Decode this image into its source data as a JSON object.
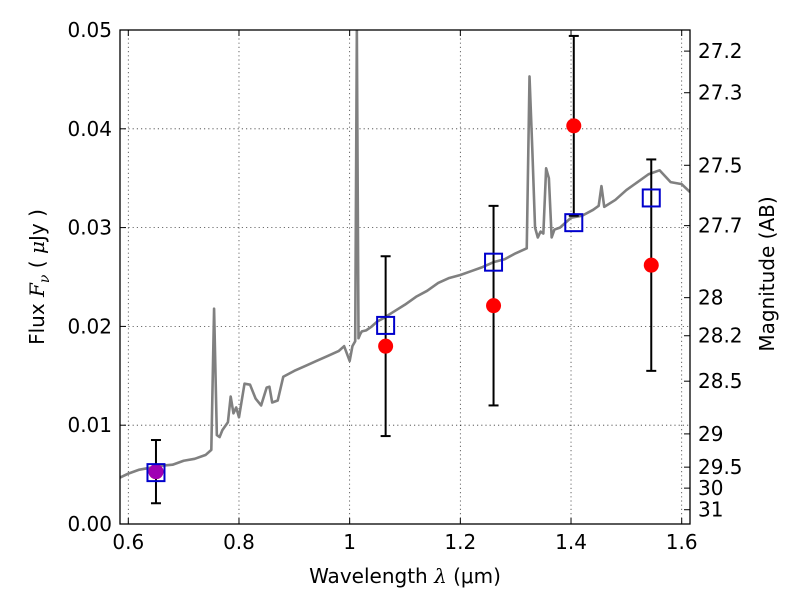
{
  "chart_data": {
    "type": "scatter",
    "xlabel_main": "Wavelength",
    "xlabel_symbol": "λ",
    "xlabel_unit": "(μm)",
    "ylabel_main": "Flux",
    "ylabel_symbol": "F",
    "ylabel_subscript": "ν",
    "ylabel_unit_open": "(",
    "ylabel_unit_mu": "μ",
    "ylabel_unit_rest": "Jy )",
    "y2label": "Magnitude (AB)",
    "xlim": [
      0.585,
      1.615
    ],
    "ylim": [
      0.0,
      0.05
    ],
    "grid": true,
    "x_ticks": [
      0.6,
      0.8,
      1.0,
      1.2,
      1.4,
      1.6
    ],
    "x_tick_labels": [
      "0.6",
      "0.8",
      "1",
      "1.2",
      "1.4",
      "1.6"
    ],
    "y_ticks": [
      0.0,
      0.01,
      0.02,
      0.03,
      0.04,
      0.05
    ],
    "y_tick_labels": [
      "0.00",
      "0.01",
      "0.02",
      "0.03",
      "0.04",
      "0.05"
    ],
    "mag_ticks": [
      27.2,
      27.3,
      27.5,
      27.7,
      28,
      28.2,
      28.5,
      29,
      29.5,
      30,
      31
    ],
    "mag_tick_labels": [
      "27.2",
      "27.3",
      "27.5",
      "27.7",
      "28",
      "28.2",
      "28.5",
      "29",
      "29.5",
      "30",
      "31"
    ],
    "series": [
      {
        "kind": "model-spectrum",
        "color": "#808080",
        "x": [
          0.585,
          0.6,
          0.62,
          0.64,
          0.66,
          0.68,
          0.7,
          0.72,
          0.74,
          0.75,
          0.755,
          0.76,
          0.765,
          0.77,
          0.78,
          0.785,
          0.79,
          0.795,
          0.8,
          0.81,
          0.82,
          0.83,
          0.84,
          0.85,
          0.855,
          0.86,
          0.87,
          0.88,
          0.9,
          0.92,
          0.94,
          0.96,
          0.98,
          0.99,
          1.0,
          1.005,
          1.01,
          1.013,
          1.016,
          1.019,
          1.022,
          1.03,
          1.04,
          1.05,
          1.06,
          1.08,
          1.1,
          1.12,
          1.14,
          1.16,
          1.18,
          1.2,
          1.22,
          1.24,
          1.26,
          1.28,
          1.3,
          1.32,
          1.325,
          1.33,
          1.335,
          1.34,
          1.345,
          1.35,
          1.355,
          1.36,
          1.365,
          1.37,
          1.38,
          1.4,
          1.42,
          1.44,
          1.45,
          1.455,
          1.46,
          1.48,
          1.5,
          1.52,
          1.54,
          1.56,
          1.58,
          1.6,
          1.615
        ],
        "y": [
          0.0047,
          0.0051,
          0.0055,
          0.0057,
          0.0059,
          0.006,
          0.0064,
          0.0066,
          0.007,
          0.0075,
          0.0218,
          0.009,
          0.0088,
          0.0095,
          0.0103,
          0.0129,
          0.0112,
          0.0118,
          0.0108,
          0.0142,
          0.0141,
          0.0127,
          0.012,
          0.0138,
          0.0139,
          0.0123,
          0.0125,
          0.0149,
          0.0155,
          0.016,
          0.0165,
          0.017,
          0.0175,
          0.018,
          0.0165,
          0.018,
          0.0185,
          0.05,
          0.0188,
          0.0192,
          0.0195,
          0.0196,
          0.02,
          0.0205,
          0.0208,
          0.0215,
          0.0222,
          0.023,
          0.0236,
          0.0244,
          0.0249,
          0.0252,
          0.0256,
          0.026,
          0.0265,
          0.0268,
          0.0274,
          0.0279,
          0.0453,
          0.038,
          0.03,
          0.029,
          0.0296,
          0.0294,
          0.036,
          0.035,
          0.029,
          0.0298,
          0.03,
          0.031,
          0.0312,
          0.0318,
          0.0322,
          0.0342,
          0.0321,
          0.0328,
          0.0338,
          0.0346,
          0.0354,
          0.0358,
          0.0346,
          0.0344,
          0.0336
        ]
      },
      {
        "kind": "model-photometry",
        "color": "#0000cc",
        "marker": "square",
        "x": [
          0.65,
          1.065,
          1.26,
          1.405,
          1.545
        ],
        "y": [
          0.0052,
          0.0201,
          0.0265,
          0.0305,
          0.033
        ]
      },
      {
        "kind": "observed",
        "color": "#ff0000",
        "marker": "circle",
        "x": [
          0.65,
          1.065,
          1.26,
          1.405,
          1.545
        ],
        "y": [
          0.0053,
          0.018,
          0.0221,
          0.0403,
          0.0262
        ],
        "yerr": [
          0.0032,
          0.0091,
          0.0101,
          0.0091,
          0.0107
        ]
      }
    ],
    "overlap_marker": {
      "x": 0.65,
      "y": 0.0053,
      "color": "#a000b4"
    }
  }
}
